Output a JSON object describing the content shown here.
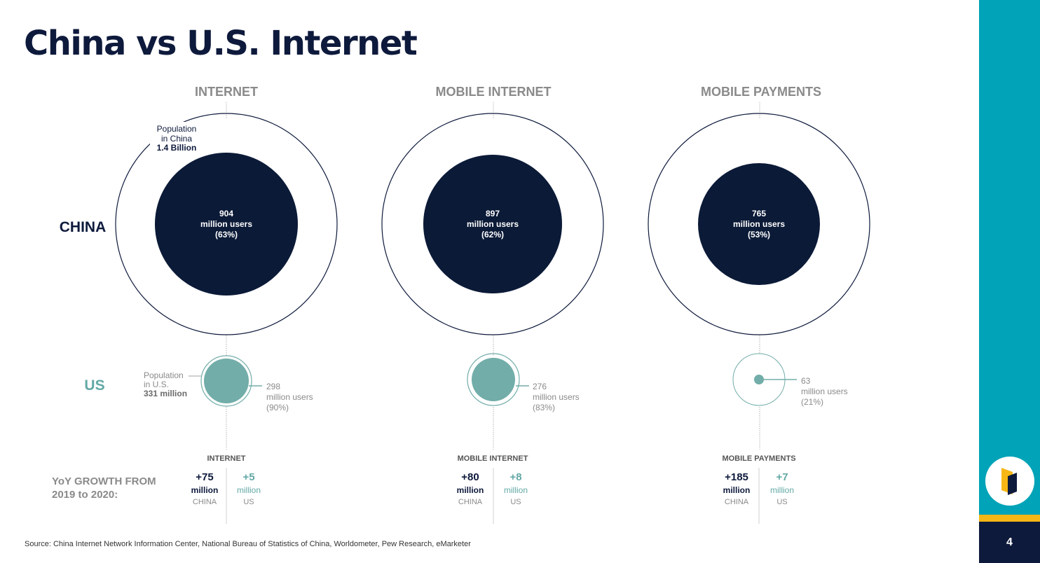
{
  "slide": {
    "title": "China vs U.S. Internet",
    "source": "Source: China Internet Network Information Center, National Bureau of Statistics of China, Worldometer, Pew Research, eMarketer",
    "page_number": "4"
  },
  "colors": {
    "navy": "#0e1a3c",
    "china_fill": "#0b1a37",
    "us_teal": "#72ada9",
    "teal_text": "#63a9a6",
    "gray_text": "#8a8a8a",
    "sidebar_teal": "#00a3b7",
    "sidebar_yellow": "#f6b716"
  },
  "row_labels": {
    "china": "CHINA",
    "us": "US"
  },
  "population": {
    "china": {
      "line1": "Population",
      "line2": "in China",
      "value": "1.4 Billion"
    },
    "us": {
      "line1": "Population",
      "line2": "in U.S.",
      "value": "331 million"
    }
  },
  "growth": {
    "label_line1": "YoY GROWTH FROM",
    "label_line2": "2019 to 2020:"
  },
  "columns": [
    {
      "title": "INTERNET",
      "china": {
        "value": "904",
        "unit": "million users",
        "pct": "(63%)",
        "share": 0.63
      },
      "us": {
        "value": "298",
        "unit": "million users",
        "pct": "(90%)",
        "share": 0.9
      },
      "growth": {
        "title": "INTERNET",
        "china_value": "+75",
        "china_unit": "million",
        "china_label": "CHINA",
        "us_value": "+5",
        "us_unit": "million",
        "us_label": "US"
      }
    },
    {
      "title": "MOBILE INTERNET",
      "china": {
        "value": "897",
        "unit": "million users",
        "pct": "(62%)",
        "share": 0.62
      },
      "us": {
        "value": "276",
        "unit": "million users",
        "pct": "(83%)",
        "share": 0.83
      },
      "growth": {
        "title": "MOBILE INTERNET",
        "china_value": "+80",
        "china_unit": "million",
        "china_label": "CHINA",
        "us_value": "+8",
        "us_unit": "million",
        "us_label": "US"
      }
    },
    {
      "title": "MOBILE PAYMENTS",
      "china": {
        "value": "765",
        "unit": "million users",
        "pct": "(53%)",
        "share": 0.53
      },
      "us": {
        "value": "63",
        "unit": "million users",
        "pct": "(21%)",
        "share": 0.21
      },
      "growth": {
        "title": "MOBILE PAYMENTS",
        "china_value": "+185",
        "china_unit": "million",
        "china_label": "CHINA",
        "us_value": "+7",
        "us_unit": "million",
        "us_label": "US"
      }
    }
  ]
}
